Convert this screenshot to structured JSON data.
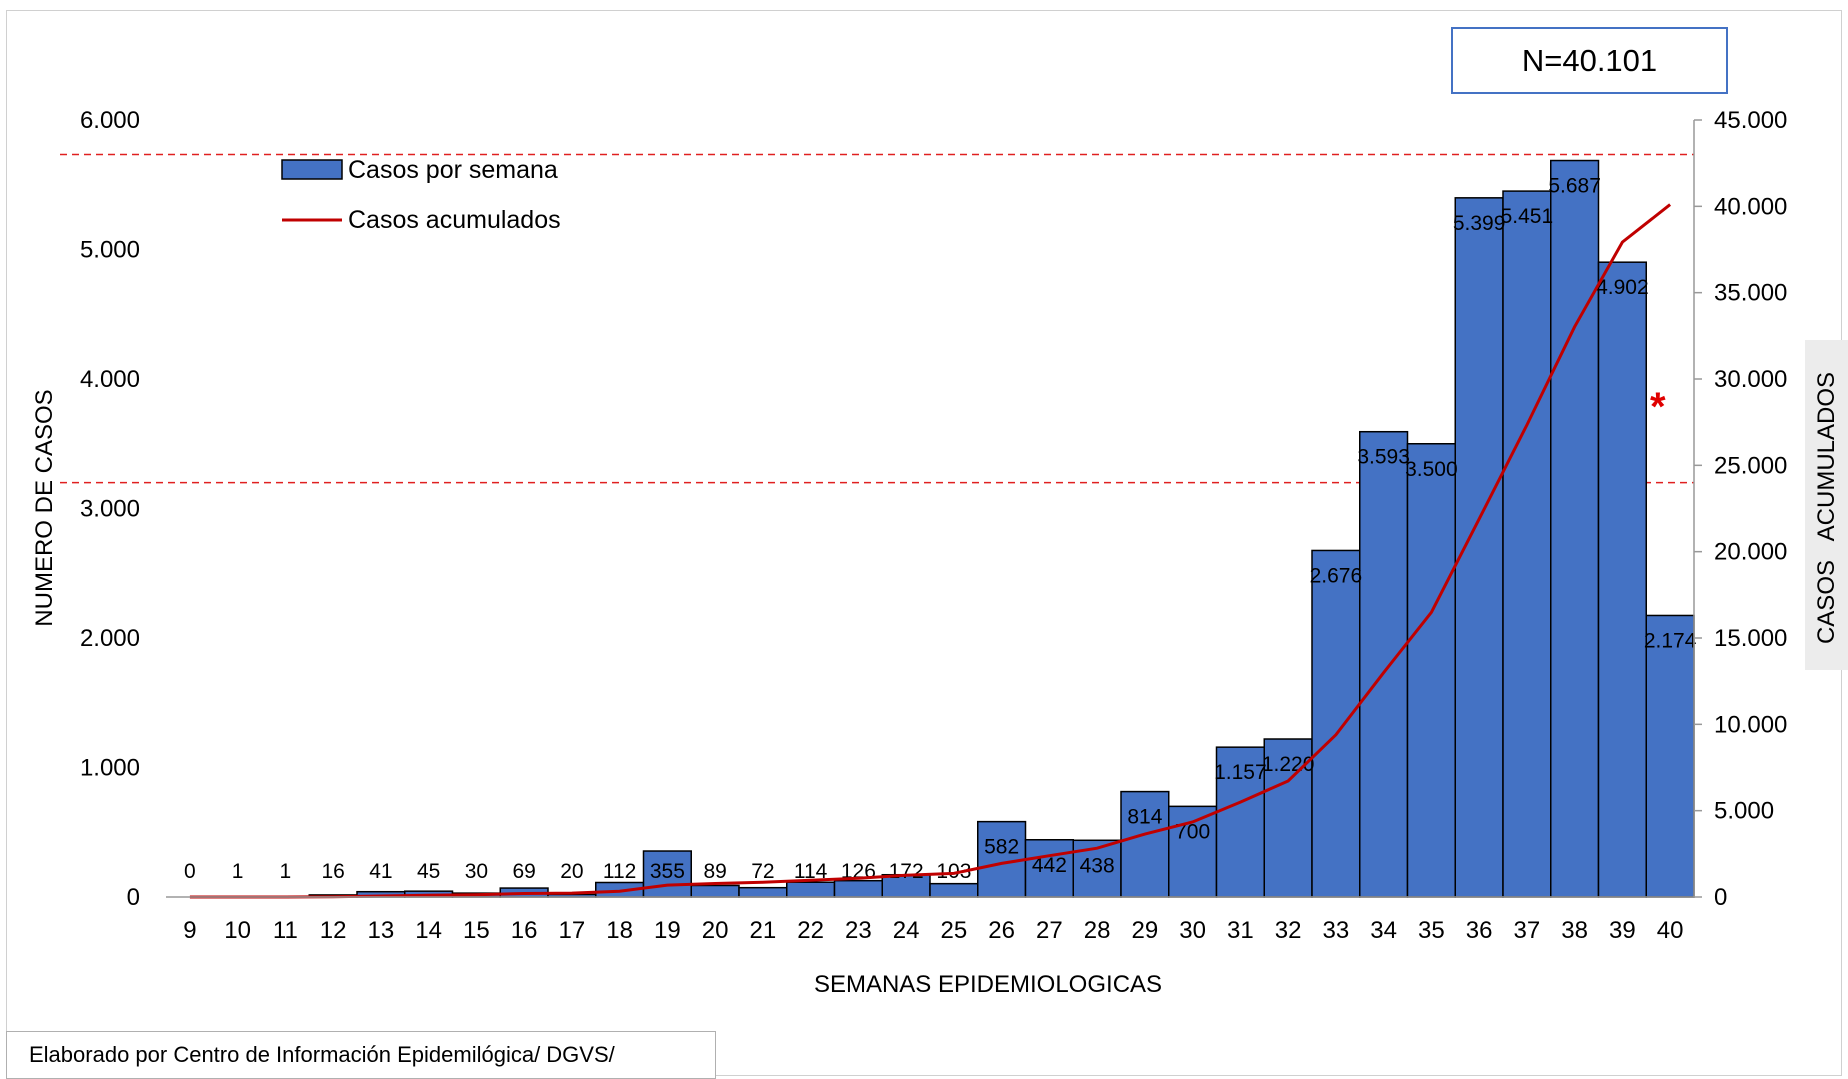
{
  "n_label": "N=40.101",
  "footer": "Elaborado por Centro de Información Epidemilógica/ DGVS/",
  "annotation_marker": "*",
  "colors": {
    "bar": "#4472c4",
    "line": "#c00000",
    "reference_line": "#e02020",
    "nbox_border": "#4472c4"
  },
  "chart_data": {
    "type": "bar",
    "xlabel": "SEMANAS EPIDEMIOLOGICAS",
    "ylabel": "NUMERO DE CASOS",
    "y2label": "CASOS   ACUMULADOS",
    "ylim": [
      0,
      6000
    ],
    "y2lim": [
      0,
      45000
    ],
    "yticks": [
      "0",
      "1.000",
      "2.000",
      "3.000",
      "4.000",
      "5.000",
      "6.000"
    ],
    "y2ticks": [
      "0",
      "5.000",
      "10.000",
      "15.000",
      "20.000",
      "25.000",
      "30.000",
      "35.000",
      "40.000",
      "45.000"
    ],
    "categories": [
      "9",
      "10",
      "11",
      "12",
      "13",
      "14",
      "15",
      "16",
      "17",
      "18",
      "19",
      "20",
      "21",
      "22",
      "23",
      "24",
      "25",
      "26",
      "27",
      "28",
      "29",
      "30",
      "31",
      "32",
      "33",
      "34",
      "35",
      "36",
      "37",
      "38",
      "39",
      "40"
    ],
    "series": [
      {
        "name": "Casos por semana",
        "type": "bar",
        "values": [
          0,
          1,
          1,
          16,
          41,
          45,
          30,
          69,
          20,
          112,
          355,
          89,
          72,
          114,
          126,
          172,
          103,
          582,
          442,
          438,
          814,
          700,
          1157,
          1220,
          2676,
          3593,
          3500,
          5399,
          5451,
          5687,
          4902,
          2174
        ],
        "labels": [
          "0",
          "1",
          "1",
          "16",
          "41",
          "45",
          "30",
          "69",
          "20",
          "112",
          "355",
          "89",
          "72",
          "114",
          "126",
          "172",
          "103",
          "582",
          "442",
          "438",
          "814",
          "700",
          "1.157",
          "1.220",
          "2.676",
          "3.593",
          "3.500",
          "5.399",
          "5.451",
          "5.687",
          "4.902",
          "2.174"
        ]
      },
      {
        "name": "Casos acumulados",
        "type": "line",
        "axis": "right",
        "values": [
          0,
          1,
          2,
          18,
          59,
          104,
          134,
          203,
          223,
          335,
          690,
          779,
          851,
          965,
          1091,
          1263,
          1366,
          1948,
          2390,
          2828,
          3642,
          4342,
          5499,
          6719,
          9395,
          12988,
          16488,
          21887,
          27338,
          33025,
          37927,
          40101
        ]
      }
    ],
    "reference_lines": [
      {
        "axis": "right",
        "value": 43000,
        "style": "dashed"
      },
      {
        "axis": "right",
        "value": 24000,
        "style": "dashed"
      }
    ],
    "legend_position": "top-left"
  }
}
